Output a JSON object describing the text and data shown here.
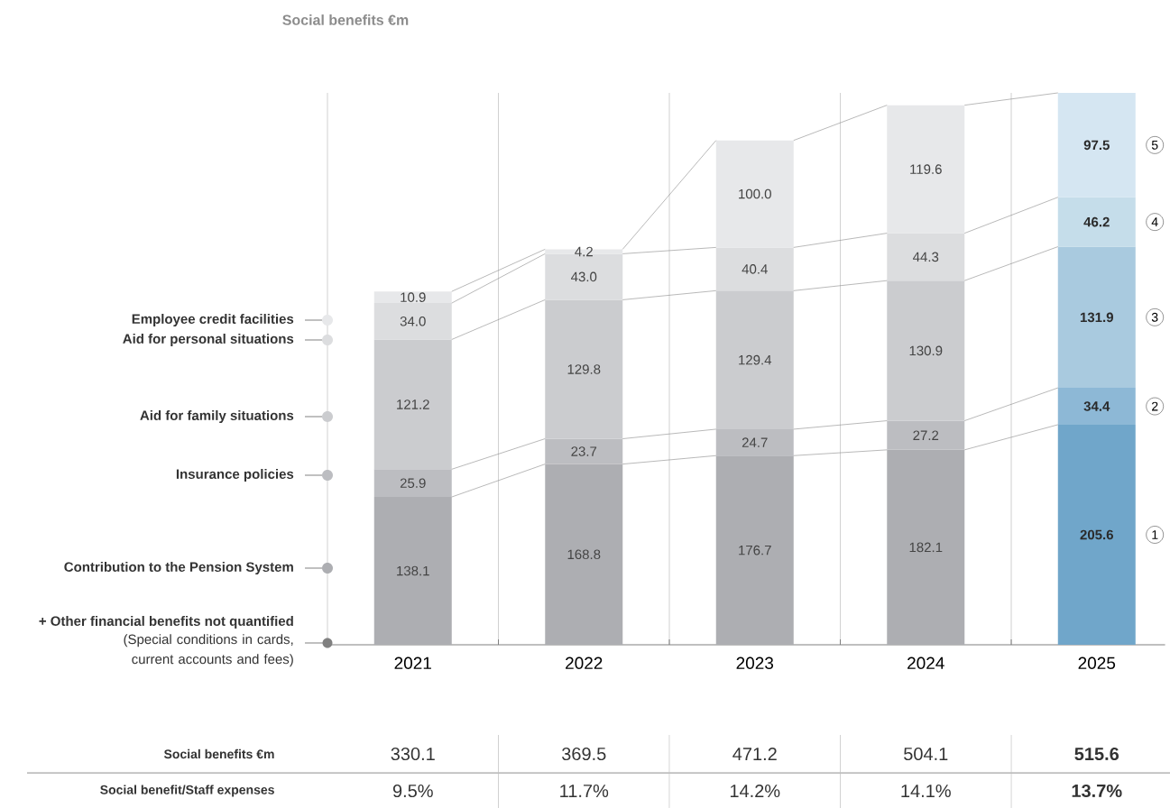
{
  "chart_data": {
    "type": "bar",
    "title": "Social benefits €m",
    "stacked": true,
    "grid": "x",
    "legend": "left",
    "categories": [
      "2021",
      "2022",
      "2023",
      "2024",
      "2025"
    ],
    "series": [
      {
        "name": "Contribution to the Pension System",
        "colors": [
          "#adaeb2",
          "#adaeb2",
          "#adaeb2",
          "#adaeb2",
          "#70a6ca"
        ],
        "values": [
          138.1,
          168.8,
          176.7,
          182.1,
          205.6
        ],
        "value_labels": [
          "138.1",
          "168.8",
          "176.7",
          "182.1",
          "205.6"
        ]
      },
      {
        "name": "Insurance policies",
        "colors": [
          "#bcbdc1",
          "#bcbdc1",
          "#bcbdc1",
          "#bcbdc1",
          "#8db8d6"
        ],
        "values": [
          25.9,
          23.7,
          24.7,
          27.2,
          34.4
        ],
        "value_labels": [
          "25.9",
          "23.7",
          "24.7",
          "27.2",
          "34.4"
        ]
      },
      {
        "name": "Aid for family situations",
        "colors": [
          "#cbcccf",
          "#cbcccf",
          "#cbcccf",
          "#cbcccf",
          "#a9cadf"
        ],
        "values": [
          121.2,
          129.8,
          129.4,
          130.9,
          131.9
        ],
        "value_labels": [
          "121.2",
          "129.8",
          "129.4",
          "130.9",
          "131.9"
        ]
      },
      {
        "name": "Aid for personal situations",
        "colors": [
          "#dcdddf",
          "#dcdddf",
          "#dcdddf",
          "#dcdddf",
          "#c5ddea"
        ],
        "values": [
          34.0,
          43.0,
          40.4,
          44.3,
          46.2
        ],
        "value_labels": [
          "34.0",
          "43.0",
          "40.4",
          "44.3",
          "46.2"
        ]
      },
      {
        "name": "Employee credit facilities",
        "colors": [
          "#e7e8ea",
          "#e7e8ea",
          "#e7e8ea",
          "#e7e8ea",
          "#d5e6f2"
        ],
        "values": [
          10.9,
          4.2,
          100.0,
          119.6,
          97.5
        ],
        "value_labels": [
          "10.9",
          "4.2",
          "100.0",
          "119.6",
          "97.5"
        ]
      }
    ],
    "annotations": [
      "+ Other financial benefits not quantified",
      "(Special conditions in cards, current accounts and fees)",
      "1",
      "2",
      "3",
      "4",
      "5",
      "Social benefits €m",
      "Social benefit/Staff expenses",
      "9.5%",
      "11.7%",
      "14.2%",
      "14.1%",
      "13.7%",
      "330.1",
      "369.5",
      "471.2",
      "504.1",
      "515.6"
    ]
  }
}
